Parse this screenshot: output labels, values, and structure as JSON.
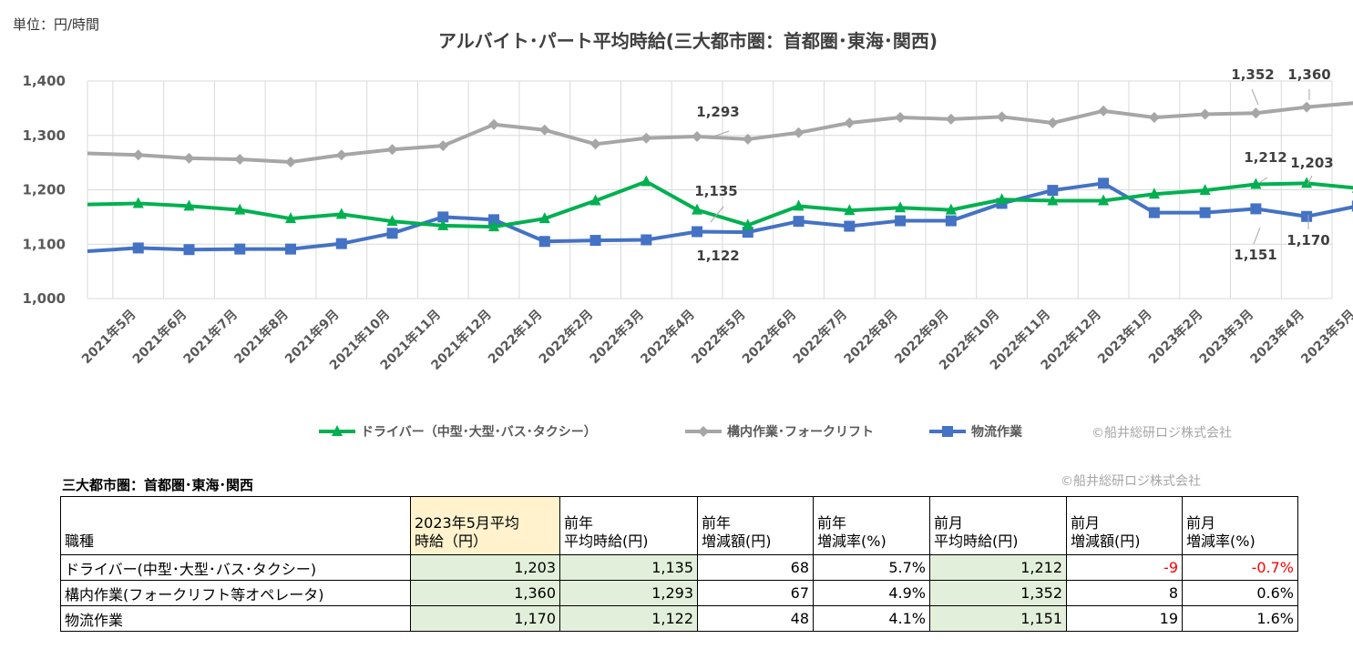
{
  "unit_label": "単位：円/時間",
  "credit": "©船井総研ロジ株式会社",
  "chart_data": {
    "type": "line",
    "title": "アルバイト･パート平均時給(三大都市圏：首都圏･東海･関西)",
    "ylim": [
      1000,
      1400
    ],
    "yticks": [
      "1,000",
      "1,100",
      "1,200",
      "1,300",
      "1,400"
    ],
    "categories": [
      "2021年5月",
      "2021年6月",
      "2021年7月",
      "2021年8月",
      "2021年9月",
      "2021年10月",
      "2021年11月",
      "2021年12月",
      "2022年1月",
      "2022年2月",
      "2022年3月",
      "2022年4月",
      "2022年5月",
      "2022年6月",
      "2022年7月",
      "2022年8月",
      "2022年9月",
      "2022年10月",
      "2022年11月",
      "2022年12月",
      "2023年1月",
      "2023年2月",
      "2023年3月",
      "2023年4月",
      "2023年5月"
    ],
    "series": [
      {
        "name": "ドライバー（中型･大型･バス･タクシー）",
        "color": "#00b050",
        "marker": "triangle",
        "values": [
          1175,
          1170,
          1163,
          1147,
          1155,
          1142,
          1134,
          1132,
          1147,
          1180,
          1215,
          1163,
          1135,
          1170,
          1162,
          1167,
          1163,
          1182,
          1180,
          1180,
          1192,
          1199,
          1210,
          1212,
          1203
        ]
      },
      {
        "name": "構内作業･フォークリフト",
        "color": "#a6a6a6",
        "marker": "diamond",
        "values": [
          1264,
          1258,
          1256,
          1251,
          1264,
          1274,
          1281,
          1320,
          1310,
          1284,
          1295,
          1298,
          1293,
          1305,
          1323,
          1333,
          1330,
          1334,
          1323,
          1345,
          1333,
          1339,
          1341,
          1352,
          1360
        ]
      },
      {
        "name": "物流作業",
        "color": "#4472c4",
        "marker": "square",
        "values": [
          1093,
          1090,
          1091,
          1091,
          1101,
          1120,
          1150,
          1145,
          1105,
          1107,
          1108,
          1123,
          1122,
          1142,
          1133,
          1143,
          1143,
          1175,
          1199,
          1212,
          1158,
          1158,
          1165,
          1151,
          1170
        ]
      }
    ],
    "start_values": [
      1173,
      1267,
      1087
    ],
    "annotations": [
      "1,293",
      "1,135",
      "1,122",
      "1,352",
      "1,360",
      "1,212",
      "1,203",
      "1,151",
      "1,170"
    ]
  },
  "table": {
    "title": "三大都市圏：首都圏･東海･関西",
    "credit": "©船井総研ロジ株式会社",
    "headers": [
      [
        "職種"
      ],
      [
        "2023年5月平均",
        "時給（円）"
      ],
      [
        "前年",
        "平均時給(円)"
      ],
      [
        "前年",
        "増減額(円)"
      ],
      [
        "前年",
        "増減率(%)"
      ],
      [
        "前月",
        "平均時給(円)"
      ],
      [
        "前月",
        "増減額(円)"
      ],
      [
        "前月",
        "増減率(%)"
      ]
    ],
    "rows": [
      {
        "job": "ドライバー(中型･大型･バス･タクシー)",
        "current": "1,203",
        "prev_year": "1,135",
        "yoy_diff": "68",
        "yoy_rate": "5.7%",
        "prev_month": "1,212",
        "mom_diff": "-9",
        "mom_rate": "-0.7%"
      },
      {
        "job": "構内作業(フォークリフト等オペレータ)",
        "current": "1,360",
        "prev_year": "1,293",
        "yoy_diff": "67",
        "yoy_rate": "4.9%",
        "prev_month": "1,352",
        "mom_diff": "8",
        "mom_rate": "0.6%"
      },
      {
        "job": "物流作業",
        "current": "1,170",
        "prev_year": "1,122",
        "yoy_diff": "48",
        "yoy_rate": "4.1%",
        "prev_month": "1,151",
        "mom_diff": "19",
        "mom_rate": "1.6%"
      }
    ]
  }
}
